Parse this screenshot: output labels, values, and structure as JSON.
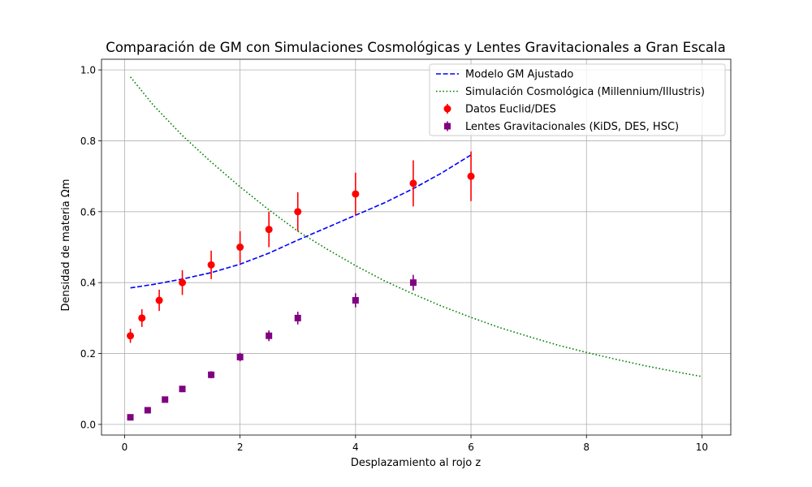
{
  "chart_data": {
    "type": "scatter",
    "title": "Comparación de GM con Simulaciones Cosmológicas y Lentes Gravitacionales a Gran Escala",
    "xlabel": "Desplazamiento al rojo z",
    "ylabel": "Densidad de materia Ωm",
    "xlim": [
      -0.4,
      10.5
    ],
    "ylim": [
      -0.03,
      1.03
    ],
    "xticks": [
      0,
      2,
      4,
      6,
      8,
      10
    ],
    "yticks": [
      0.0,
      0.2,
      0.4,
      0.6,
      0.8,
      1.0
    ],
    "xtick_labels": [
      "0",
      "2",
      "4",
      "6",
      "8",
      "10"
    ],
    "ytick_labels": [
      "0.0",
      "0.2",
      "0.4",
      "0.6",
      "0.8",
      "1.0"
    ],
    "grid": true,
    "legend_position": "top-right",
    "series": [
      {
        "name": "Modelo GM Ajustado",
        "kind": "line",
        "style": "dashed",
        "color": "#0000ff",
        "x": [
          0.1,
          0.5,
          1.0,
          1.5,
          2.0,
          2.5,
          3.0,
          3.5,
          4.0,
          4.5,
          5.0,
          5.5,
          6.0
        ],
        "y": [
          0.385,
          0.395,
          0.41,
          0.428,
          0.452,
          0.483,
          0.52,
          0.555,
          0.59,
          0.625,
          0.665,
          0.71,
          0.76
        ]
      },
      {
        "name": "Simulación Cosmológica (Millennium/Illustris)",
        "kind": "line",
        "style": "dotted",
        "color": "#008000",
        "x": [
          0.1,
          0.5,
          1.0,
          1.5,
          2.0,
          2.5,
          3.0,
          3.5,
          4.0,
          4.5,
          5.0,
          5.5,
          6.0,
          6.5,
          7.0,
          7.5,
          8.0,
          8.5,
          9.0,
          9.5,
          10.0
        ],
        "y": [
          0.98,
          0.9,
          0.815,
          0.74,
          0.67,
          0.605,
          0.545,
          0.495,
          0.448,
          0.405,
          0.368,
          0.333,
          0.302,
          0.273,
          0.248,
          0.224,
          0.203,
          0.184,
          0.166,
          0.15,
          0.135
        ]
      },
      {
        "name": "Datos Euclid/DES",
        "kind": "errorbar",
        "marker": "circle",
        "color": "#ff0000",
        "x": [
          0.1,
          0.3,
          0.6,
          1.0,
          1.5,
          2.0,
          2.5,
          3.0,
          4.0,
          5.0,
          6.0
        ],
        "y": [
          0.25,
          0.3,
          0.35,
          0.4,
          0.45,
          0.5,
          0.55,
          0.6,
          0.65,
          0.68,
          0.7
        ],
        "yerr": [
          0.02,
          0.025,
          0.03,
          0.035,
          0.04,
          0.045,
          0.05,
          0.055,
          0.06,
          0.065,
          0.07
        ]
      },
      {
        "name": "Lentes Gravitacionales (KiDS, DES, HSC)",
        "kind": "errorbar",
        "marker": "square",
        "color": "#800080",
        "x": [
          0.1,
          0.4,
          0.7,
          1.0,
          1.5,
          2.0,
          2.5,
          3.0,
          4.0,
          5.0
        ],
        "y": [
          0.02,
          0.04,
          0.07,
          0.1,
          0.14,
          0.19,
          0.25,
          0.3,
          0.35,
          0.4
        ],
        "yerr": [
          0.005,
          0.006,
          0.008,
          0.009,
          0.01,
          0.012,
          0.015,
          0.018,
          0.02,
          0.022
        ]
      }
    ]
  }
}
